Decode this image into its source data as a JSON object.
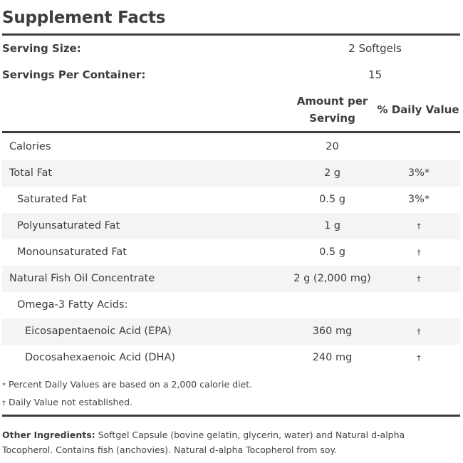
{
  "panel": {
    "title": "Supplement Facts",
    "serving_size_label": "Serving Size:",
    "serving_size_value": "2 Softgels",
    "servings_per_container_label": "Servings Per Container:",
    "servings_per_container_value": "15",
    "col_amount_line1": "Amount per",
    "col_amount_line2": "Serving",
    "col_dv": "% Daily Value"
  },
  "rows": [
    {
      "name": "Calories",
      "amount": "20",
      "dv": ""
    },
    {
      "name": "Total Fat",
      "amount": "2 g",
      "dv": "3%*"
    },
    {
      "name": "Saturated Fat",
      "amount": "0.5 g",
      "dv": "3%*"
    },
    {
      "name": "Polyunsaturated Fat",
      "amount": "1 g",
      "dv": "†"
    },
    {
      "name": "Monounsaturated Fat",
      "amount": "0.5 g",
      "dv": "†"
    },
    {
      "name": "Natural Fish Oil Concentrate",
      "amount": "2 g (2,000 mg)",
      "dv": "†"
    },
    {
      "name": "Omega-3 Fatty Acids:",
      "amount": "",
      "dv": ""
    },
    {
      "name": "Eicosapentaenoic Acid (EPA)",
      "amount": "360 mg",
      "dv": "†"
    },
    {
      "name": "Docosahexaenoic Acid (DHA)",
      "amount": "240 mg",
      "dv": "†"
    }
  ],
  "footnotes": {
    "percent_symbol": "*",
    "percent_text": " Percent Daily Values are based on a 2,000 calorie diet.",
    "dagger_symbol": "†",
    "dagger_text": " Daily Value not established."
  },
  "other_ingredients": {
    "label": "Other Ingredients:",
    "text": "Softgel Capsule (bovine gelatin, glycerin, water) and Natural d-alpha Tocopherol. Contains fish (anchovies). Natural d-alpha Tocopherol from soy."
  }
}
